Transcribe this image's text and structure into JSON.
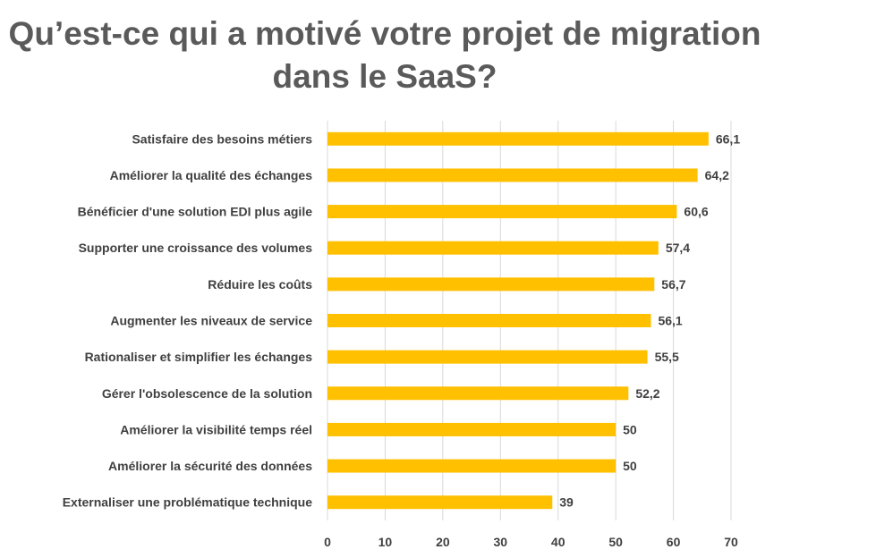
{
  "title": {
    "line1": "Qu’est-ce qui a motivé votre projet de migration",
    "line2": "dans le SaaS?"
  },
  "chart_data": {
    "type": "bar",
    "orientation": "horizontal",
    "title": "Qu’est-ce qui a motivé votre projet de migration dans le SaaS?",
    "categories": [
      "Satisfaire des besoins métiers",
      "Améliorer la qualité des échanges",
      "Bénéficier d'une solution EDI plus agile",
      "Supporter une croissance des volumes",
      "Réduire les coûts",
      "Augmenter les niveaux de service",
      "Rationaliser et simplifier les échanges",
      "Gérer l'obsolescence de la solution",
      "Améliorer la visibilité temps réel",
      "Améliorer la sécurité des données",
      "Externaliser une problématique technique"
    ],
    "values": [
      66.1,
      64.2,
      60.6,
      57.4,
      56.7,
      56.1,
      55.5,
      52.2,
      50,
      50,
      39
    ],
    "value_labels": [
      "66,1",
      "64,2",
      "60,6",
      "57,4",
      "56,7",
      "56,1",
      "55,5",
      "52,2",
      "50",
      "50",
      "39"
    ],
    "xlim": [
      0,
      70
    ],
    "ticks": [
      0,
      10,
      20,
      30,
      40,
      50,
      60,
      70
    ],
    "tick_labels": [
      "0",
      "10",
      "20",
      "30",
      "40",
      "50",
      "60",
      "70"
    ],
    "grid": true,
    "bar_color": "#FFC000",
    "legend": "none"
  }
}
